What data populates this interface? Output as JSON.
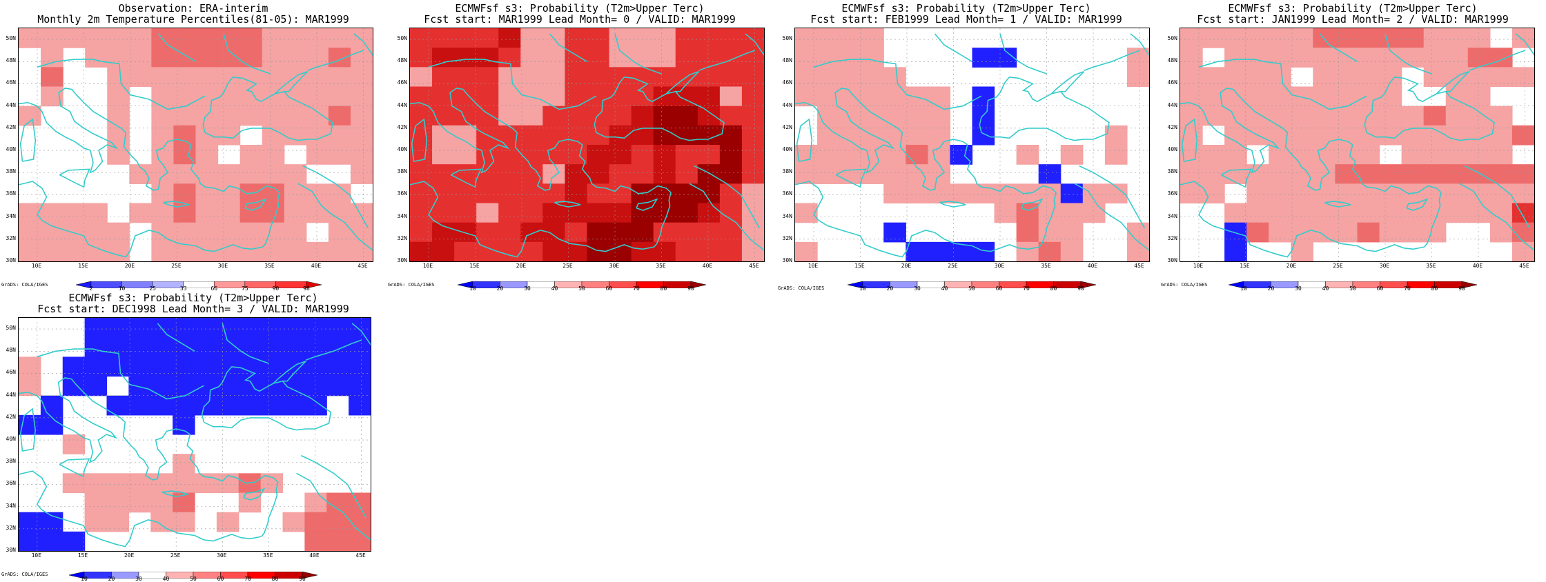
{
  "panels": [
    {
      "title1": "Observation: ERA-interim",
      "title2": "Monthly 2m Temperature Percentiles(81-05): MAR1999",
      "legend": {
        "labels": [
          "2",
          "10",
          "25",
          "33",
          "66",
          "75",
          "90",
          "98"
        ],
        "colors": [
          "#1a1aff",
          "#4d4dff",
          "#8080ff",
          "#b3b3ff",
          "#ffffff",
          "#ff9999",
          "#ff6666",
          "#ff3333",
          "#e60000"
        ]
      },
      "credit": "GrADS: COLA/IGES",
      "grid": [
        "LLLLLLMMMMMLLLLL",
        "WLWLLLMMMMMLLLML",
        "WMWWLLLLLLLLLLLL",
        "WLWWLWLLLLLLLLLL",
        "LWWWLWLLLLLLLLML",
        "WWWWLWLMLLWLLLLL",
        "WWWWLWLMLWLLWLLL",
        "WWWWWLLLLLLLLWWL",
        "WWWWWWLMLLMMLLLW",
        "LLLLWLLMLLMMLLLL",
        "LLLLLWLLLLLLLWLL",
        "LLLLLWLLLLLLLLLL"
      ]
    },
    {
      "title1": "ECMWFsf s3: Probability (T2m>Upper Terc)",
      "title2": "Fcst start: MAR1999  Lead Month= 0 / VALID: MAR1999",
      "legend": {
        "labels": [
          "10",
          "20",
          "30",
          "40",
          "50",
          "60",
          "70",
          "80",
          "90"
        ],
        "colors": [
          "#0000ff",
          "#3333ff",
          "#9999ff",
          "#ffffff",
          "#ffb3b3",
          "#ff8080",
          "#ff4d4d",
          "#ff0000",
          "#cc0000",
          "#990000"
        ]
      },
      "credit": "GrADS: COLA/IGES",
      "grid": [
        "RRRRDLLRRLLLRRRR",
        "RDDDRLLRRLLLRRRR",
        "LRRRLLLRRRRRRRRR",
        "RRRRLLLRRRRDDDLR",
        "RRRRLLRRRRDXXDRR",
        "RLLRRRRRRDDXXXXR",
        "RLLRRRRRDDRDRRXR",
        "RRRRRRLDDRRDRXXR",
        "RRRRRRRDRRXXXXRL",
        "RRRLRRDDDDXXXDRL",
        "RDDRRDDRXXXRRRRL",
        "DDRRRRDDXXDDRRRL"
      ]
    },
    {
      "title1": "ECMWFsf s3: Probability (T2m>Upper Terc)",
      "title2": "Fcst start: FEB1999  Lead Month= 1 / VALID: MAR1999",
      "legend": {
        "labels": [
          "10",
          "20",
          "30",
          "40",
          "50",
          "60",
          "70",
          "80",
          "90"
        ],
        "colors": [
          "#0000ff",
          "#3333ff",
          "#9999ff",
          "#ffffff",
          "#ffb3b3",
          "#ff8080",
          "#ff4d4d",
          "#ff0000",
          "#cc0000",
          "#990000"
        ]
      },
      "credit": "GrADS: COLA/IGES",
      "grid": [
        "LLLLWWWWWWWWWWWW",
        "LLLLWWWWBBWWWWWL",
        "LLLLLWWWWWWWWWWL",
        "LLLLLLLWBWWWWWWW",
        "WLLLLLLWBWWWWWWW",
        "WLLLLLLWBWWWWWLW",
        "LLLLLMLBWWLWLWLW",
        "LLLLLLLWWWWBWWWW",
        "WWWWLLLLLLLLBLLW",
        "LWWWWWWWWLMLLLWW",
        "WWWWBWWWWWMLLWWL",
        "LWWWWBBBBWLMLWWL"
      ]
    },
    {
      "title1": "ECMWFsf s3: Probability (T2m>Upper Terc)",
      "title2": "Fcst start: JAN1999  Lead Month= 2 / VALID: MAR1999",
      "legend": {
        "labels": [
          "10",
          "20",
          "30",
          "40",
          "50",
          "60",
          "70",
          "80",
          "90"
        ],
        "colors": [
          "#0000ff",
          "#3333ff",
          "#9999ff",
          "#ffffff",
          "#ffb3b3",
          "#ff8080",
          "#ff4d4d",
          "#ff0000",
          "#cc0000",
          "#990000"
        ]
      },
      "credit": "GrADS: COLA/IGES",
      "grid": [
        "LLLLLLMMMMMLLLWL",
        "LWLLLLLLLLLLLMMW",
        "LLLLLWLLLLWLLLLL",
        "LLLLLLLLLLWWLLWW",
        "LLLLLLLLLLLMLLLW",
        "LWLLLLLLLLLLLLLM",
        "LLLWLLLLLWLLLLLW",
        "LLLLLLLMMMMMMMMM",
        "LLWLLLLLLLLLLLLL",
        "WWLLLLLLLLLLLLLR",
        "WWBMLLLLMLLLWWLM",
        "WWBWWLWWWWWWWWWL"
      ]
    },
    {
      "title1": "ECMWFsf s3: Probability (T2m>Upper Terc)",
      "title2": "Fcst start: DEC1998  Lead Month= 3 / VALID: MAR1999",
      "legend": {
        "labels": [
          "10",
          "20",
          "30",
          "40",
          "50",
          "60",
          "70",
          "80",
          "90"
        ],
        "colors": [
          "#0000ff",
          "#3333ff",
          "#9999ff",
          "#ffffff",
          "#ffb3b3",
          "#ff8080",
          "#ff4d4d",
          "#ff0000",
          "#cc0000",
          "#990000"
        ]
      },
      "credit": "GrADS: COLA/IGES",
      "grid": [
        "WWWBBBBBBBBBBBBB",
        "WWWBBBBBBBBBBBBB",
        "LWBBBBBBBBBBBBBB",
        "LWBBWBBBBBBBBBBB",
        "WBWWBBBBBBBBBBWB",
        "BBWWWWWBWWWWWWWW",
        "WWLWWWWWWWWWWWWW",
        "WWWWWWWLWWWWWWWW",
        "WWLLLLLLLLMLWWWW",
        "WWWLLLLMWWLWWLMM",
        "BBWLLWLLWLWWLMMM",
        "BBBWWWWWWWWWWMMM"
      ]
    }
  ],
  "axes": {
    "lat_labels": [
      "50N",
      "48N",
      "46N",
      "44N",
      "42N",
      "40N",
      "38N",
      "36N",
      "34N",
      "32N",
      "30N"
    ],
    "lon_labels": [
      "10E",
      "15E",
      "20E",
      "25E",
      "30E",
      "35E",
      "40E",
      "45E"
    ],
    "lat_range": [
      30,
      51
    ],
    "lon_range": [
      8,
      46
    ]
  },
  "cell_colors": {
    "W": "#ffffff",
    "L": "#f5a3a3",
    "M": "#ee6b6b",
    "R": "#e53030",
    "D": "#c81010",
    "X": "#9a0000",
    "B": "#2020ff",
    "coast": "#33cccc"
  }
}
